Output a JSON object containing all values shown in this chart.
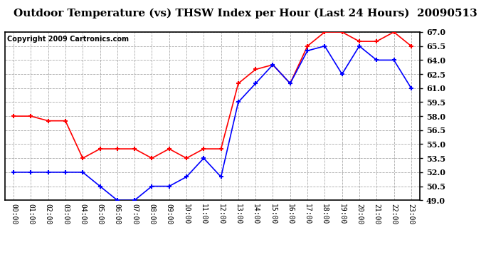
{
  "title": "Outdoor Temperature (vs) THSW Index per Hour (Last 24 Hours)  20090513",
  "copyright": "Copyright 2009 Cartronics.com",
  "hours": [
    "00:00",
    "01:00",
    "02:00",
    "03:00",
    "04:00",
    "05:00",
    "06:00",
    "07:00",
    "08:00",
    "09:00",
    "10:00",
    "11:00",
    "12:00",
    "13:00",
    "14:00",
    "15:00",
    "16:00",
    "17:00",
    "18:00",
    "19:00",
    "20:00",
    "21:00",
    "22:00",
    "23:00"
  ],
  "temp": [
    52.0,
    52.0,
    52.0,
    52.0,
    52.0,
    50.5,
    49.0,
    49.0,
    50.5,
    50.5,
    51.5,
    53.5,
    51.5,
    59.5,
    61.5,
    63.5,
    61.5,
    65.0,
    65.5,
    62.5,
    65.5,
    64.0,
    64.0,
    61.0
  ],
  "thsw": [
    58.0,
    58.0,
    57.5,
    57.5,
    53.5,
    54.5,
    54.5,
    54.5,
    53.5,
    54.5,
    53.5,
    54.5,
    54.5,
    61.5,
    63.0,
    63.5,
    61.5,
    65.5,
    67.0,
    67.0,
    66.0,
    66.0,
    67.0,
    65.5
  ],
  "ylim": [
    49.0,
    67.0
  ],
  "yticks": [
    49.0,
    50.5,
    52.0,
    53.5,
    55.0,
    56.5,
    58.0,
    59.5,
    61.0,
    62.5,
    64.0,
    65.5,
    67.0
  ],
  "temp_color": "#0000ff",
  "thsw_color": "#ff0000",
  "bg_color": "#ffffff",
  "grid_color": "#aaaaaa",
  "title_fontsize": 11,
  "copyright_fontsize": 7
}
